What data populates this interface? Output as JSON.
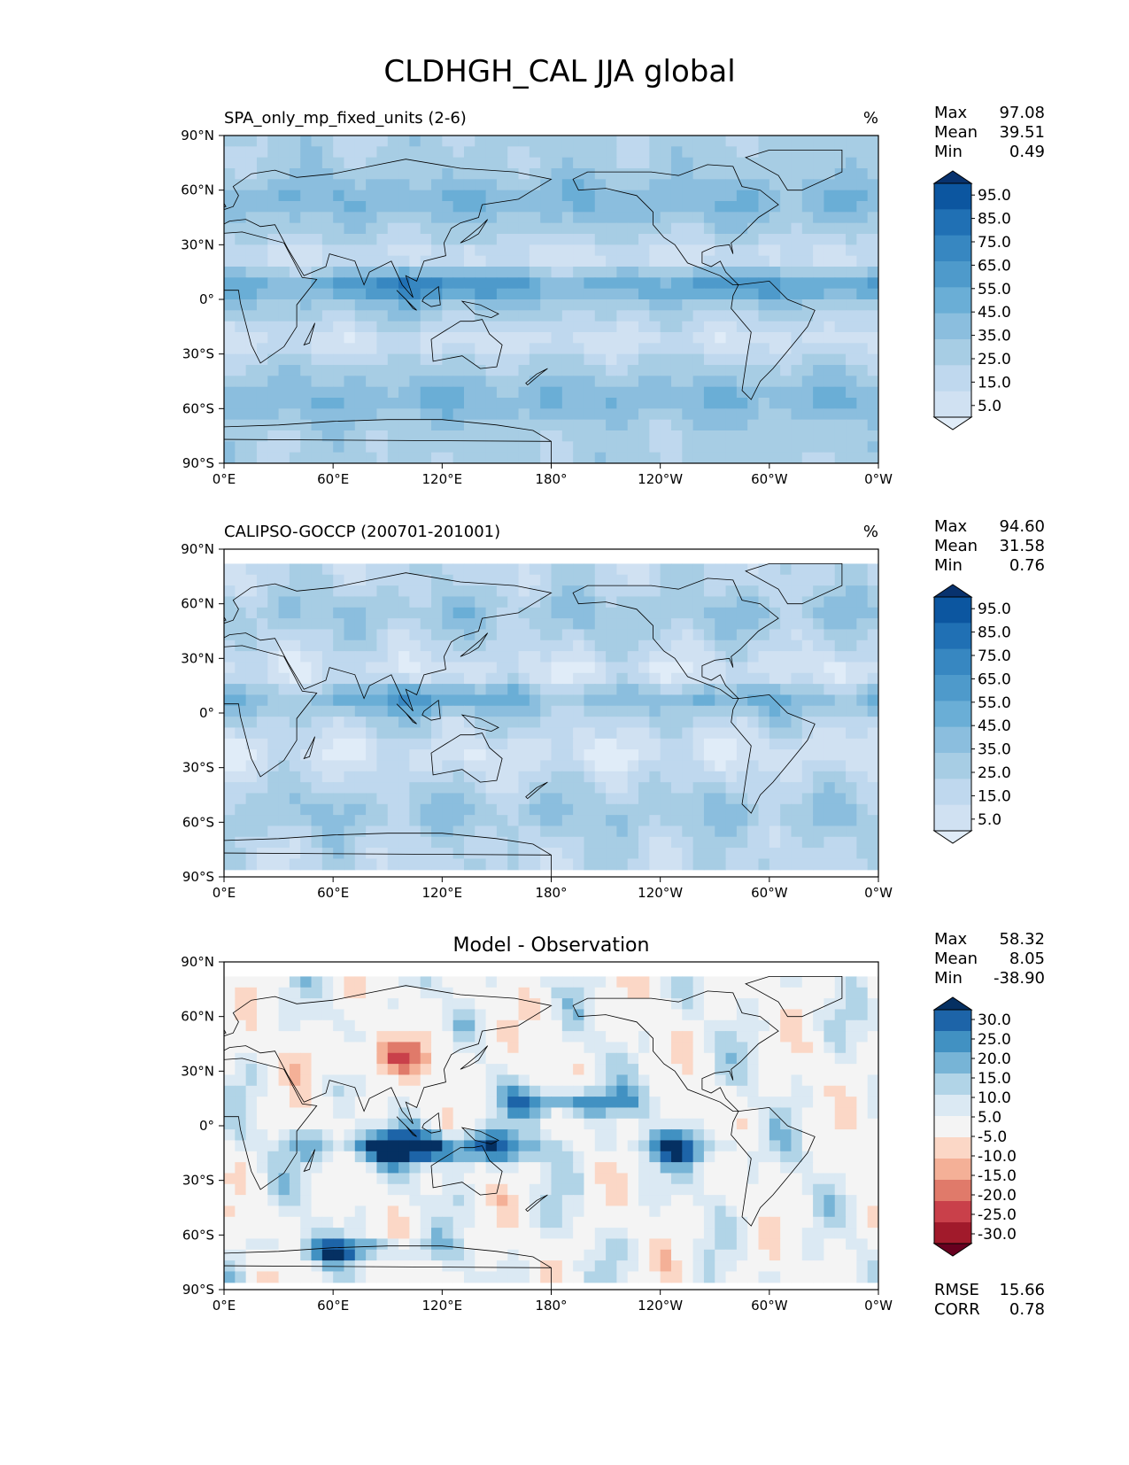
{
  "suptitle": "CLDHGH_CAL JJA global",
  "colors": {
    "blues": [
      "#f7fbff",
      "#e0ecf8",
      "#d0e1f2",
      "#bfd8ee",
      "#a7cde4",
      "#8bbede",
      "#6aaed6",
      "#4e9acb",
      "#3787c1",
      "#2070b4",
      "#0c56a0",
      "#08326e"
    ],
    "diverging": [
      "#67001f",
      "#a11a2b",
      "#c9404a",
      "#e07a6a",
      "#f4b097",
      "#fbd7c6",
      "#f4f4f4",
      "#dbe9f3",
      "#b1d4e7",
      "#77b4d6",
      "#4191c2",
      "#1d64a8",
      "#053062"
    ],
    "coastline": "#000000"
  },
  "chart_data": [
    {
      "type": "heatmap",
      "panel": "model",
      "title": "SPA_only_mp_fixed_units (2-6)",
      "units": "%",
      "x_ticks": [
        "0°E",
        "60°E",
        "120°E",
        "180°",
        "120°W",
        "60°W",
        "0°W"
      ],
      "y_ticks": [
        "90°N",
        "60°N",
        "30°N",
        "0°",
        "30°S",
        "60°S",
        "90°S"
      ],
      "xlim": [
        0,
        360
      ],
      "ylim": [
        -90,
        90
      ],
      "stats": {
        "max_label": "Max",
        "max": "97.08",
        "mean_label": "Mean",
        "mean": "39.51",
        "min_label": "Min",
        "min": "0.49"
      },
      "levels": [
        "95.0",
        "85.0",
        "75.0",
        "65.0",
        "55.0",
        "45.0",
        "35.0",
        "25.0",
        "15.0",
        "5.0"
      ]
    },
    {
      "type": "heatmap",
      "panel": "observation",
      "title": "CALIPSO-GOCCP (200701-201001)",
      "units": "%",
      "x_ticks": [
        "0°E",
        "60°E",
        "120°E",
        "180°",
        "120°W",
        "60°W",
        "0°W"
      ],
      "y_ticks": [
        "90°N",
        "60°N",
        "30°N",
        "0°",
        "30°S",
        "60°S",
        "90°S"
      ],
      "xlim": [
        0,
        360
      ],
      "ylim": [
        -90,
        90
      ],
      "data_lat_range": [
        -82,
        82
      ],
      "stats": {
        "max_label": "Max",
        "max": "94.60",
        "mean_label": "Mean",
        "mean": "31.58",
        "min_label": "Min",
        "min": "0.76"
      },
      "levels": [
        "95.0",
        "85.0",
        "75.0",
        "65.0",
        "55.0",
        "45.0",
        "35.0",
        "25.0",
        "15.0",
        "5.0"
      ]
    },
    {
      "type": "heatmap",
      "panel": "difference",
      "title": "Model - Observation",
      "units": "",
      "x_ticks": [
        "0°E",
        "60°E",
        "120°E",
        "180°",
        "120°W",
        "60°W",
        "0°W"
      ],
      "y_ticks": [
        "90°N",
        "60°N",
        "30°N",
        "0°",
        "30°S",
        "60°S",
        "90°S"
      ],
      "xlim": [
        0,
        360
      ],
      "ylim": [
        -90,
        90
      ],
      "data_lat_range": [
        -82,
        82
      ],
      "stats": {
        "max_label": "Max",
        "max": "58.32",
        "mean_label": "Mean",
        "mean": "8.05",
        "min_label": "Min",
        "min": "-38.90"
      },
      "levels": [
        "30.0",
        "25.0",
        "20.0",
        "15.0",
        "10.0",
        "5.0",
        "-5.0",
        "-10.0",
        "-15.0",
        "-20.0",
        "-25.0",
        "-30.0"
      ],
      "metrics": {
        "rmse_label": "RMSE",
        "rmse": "15.66",
        "corr_label": "CORR",
        "corr": "0.78"
      }
    }
  ]
}
